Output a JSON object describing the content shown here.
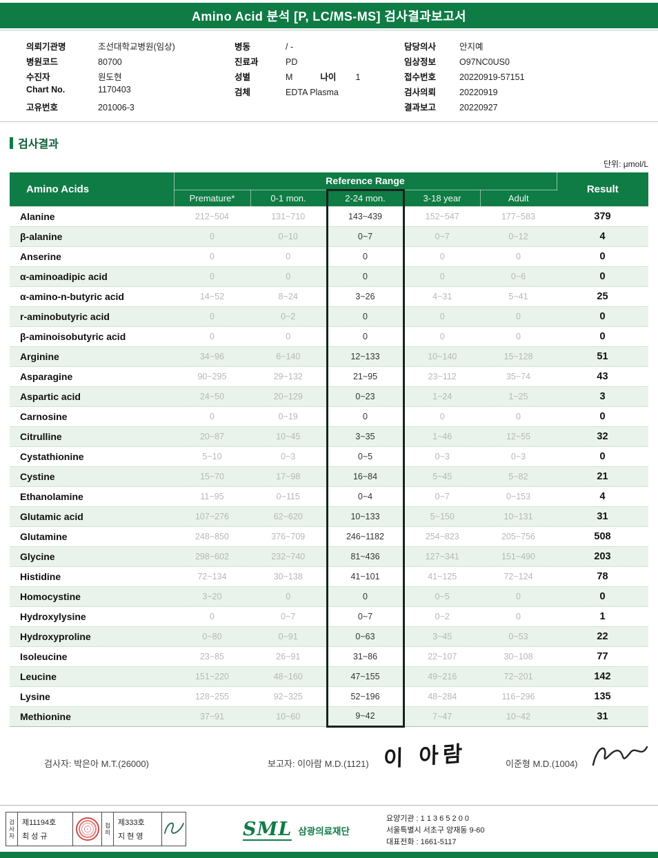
{
  "header": {
    "title": "Amino Acid 분석 [P, LC/MS-MS] 검사결과보고서"
  },
  "patient": {
    "col1": [
      {
        "label": "의뢰기관명",
        "value": "조선대학교병원(임상)"
      },
      {
        "label": "병원코드",
        "value": "80700"
      },
      {
        "label": "수진자",
        "value": "원도현"
      },
      {
        "label": "Chart No.",
        "value": "1170403"
      },
      {
        "label": "고유번호",
        "value": "201006-3"
      }
    ],
    "col2": [
      {
        "label": "병동",
        "value": "/ -"
      },
      {
        "label": "진료과",
        "value": "PD"
      },
      {
        "label": "성별",
        "value": "M",
        "label2": "나이",
        "value2": "1"
      },
      {
        "label": "검체",
        "value": "EDTA Plasma"
      }
    ],
    "col3": [
      {
        "label": "담당의사",
        "value": "안지예"
      },
      {
        "label": "임상정보",
        "value": "O97NC0US0"
      },
      {
        "label": "접수번호",
        "value": "20220919-57151"
      },
      {
        "label": "검사의뢰",
        "value": "20220919"
      },
      {
        "label": "결과보고",
        "value": "20220927"
      }
    ]
  },
  "section": {
    "title": "검사결과",
    "unit": "단위: μmol/L"
  },
  "table": {
    "header": {
      "amino": "Amino Acids",
      "ref_range": "Reference Range",
      "result": "Result",
      "sub": [
        "Premature*",
        "0-1 mon.",
        "2-24 mon.",
        "3-18 year",
        "Adult"
      ],
      "highlight_index": 2
    },
    "rows": [
      {
        "name": "Alanine",
        "refs": [
          "212~504",
          "131~710",
          "143~439",
          "152~547",
          "177~583"
        ],
        "result": "379"
      },
      {
        "name": "β-alanine",
        "refs": [
          "0",
          "0~10",
          "0~7",
          "0~7",
          "0~12"
        ],
        "result": "4"
      },
      {
        "name": "Anserine",
        "refs": [
          "0",
          "0",
          "0",
          "0",
          "0"
        ],
        "result": "0"
      },
      {
        "name": "α-aminoadipic acid",
        "refs": [
          "0",
          "0",
          "0",
          "0",
          "0~6"
        ],
        "result": "0"
      },
      {
        "name": "α-amino-n-butyric acid",
        "refs": [
          "14~52",
          "8~24",
          "3~26",
          "4~31",
          "5~41"
        ],
        "result": "25"
      },
      {
        "name": "r-aminobutyric acid",
        "refs": [
          "0",
          "0~2",
          "0",
          "0",
          "0"
        ],
        "result": "0"
      },
      {
        "name": "β-aminoisobutyric acid",
        "refs": [
          "0",
          "0",
          "0",
          "0",
          "0"
        ],
        "result": "0"
      },
      {
        "name": "Arginine",
        "refs": [
          "34~96",
          "6~140",
          "12~133",
          "10~140",
          "15~128"
        ],
        "result": "51"
      },
      {
        "name": "Asparagine",
        "refs": [
          "90~295",
          "29~132",
          "21~95",
          "23~112",
          "35~74"
        ],
        "result": "43"
      },
      {
        "name": "Aspartic acid",
        "refs": [
          "24~50",
          "20~129",
          "0~23",
          "1~24",
          "1~25"
        ],
        "result": "3"
      },
      {
        "name": "Carnosine",
        "refs": [
          "0",
          "0~19",
          "0",
          "0",
          "0"
        ],
        "result": "0"
      },
      {
        "name": "Citrulline",
        "refs": [
          "20~87",
          "10~45",
          "3~35",
          "1~46",
          "12~55"
        ],
        "result": "32"
      },
      {
        "name": "Cystathionine",
        "refs": [
          "5~10",
          "0~3",
          "0~5",
          "0~3",
          "0~3"
        ],
        "result": "0"
      },
      {
        "name": "Cystine",
        "refs": [
          "15~70",
          "17~98",
          "16~84",
          "5~45",
          "5~82"
        ],
        "result": "21"
      },
      {
        "name": "Ethanolamine",
        "refs": [
          "11~95",
          "0~115",
          "0~4",
          "0~7",
          "0~153"
        ],
        "result": "4"
      },
      {
        "name": "Glutamic acid",
        "refs": [
          "107~276",
          "62~620",
          "10~133",
          "5~150",
          "10~131"
        ],
        "result": "31"
      },
      {
        "name": "Glutamine",
        "refs": [
          "248~850",
          "376~709",
          "246~1182",
          "254~823",
          "205~756"
        ],
        "result": "508"
      },
      {
        "name": "Glycine",
        "refs": [
          "298~602",
          "232~740",
          "81~436",
          "127~341",
          "151~490"
        ],
        "result": "203"
      },
      {
        "name": "Histidine",
        "refs": [
          "72~134",
          "30~138",
          "41~101",
          "41~125",
          "72~124"
        ],
        "result": "78"
      },
      {
        "name": "Homocystine",
        "refs": [
          "3~20",
          "0",
          "0",
          "0~5",
          "0"
        ],
        "result": "0"
      },
      {
        "name": "Hydroxylysine",
        "refs": [
          "0",
          "0~7",
          "0~7",
          "0~2",
          "0"
        ],
        "result": "1"
      },
      {
        "name": "Hydroxyproline",
        "refs": [
          "0~80",
          "0~91",
          "0~63",
          "3~45",
          "0~53"
        ],
        "result": "22"
      },
      {
        "name": "Isoleucine",
        "refs": [
          "23~85",
          "26~91",
          "31~86",
          "22~107",
          "30~108"
        ],
        "result": "77"
      },
      {
        "name": "Leucine",
        "refs": [
          "151~220",
          "48~160",
          "47~155",
          "49~216",
          "72~201"
        ],
        "result": "142"
      },
      {
        "name": "Lysine",
        "refs": [
          "128~255",
          "92~325",
          "52~196",
          "48~284",
          "116~296"
        ],
        "result": "135"
      },
      {
        "name": "Methionine",
        "refs": [
          "37~91",
          "10~60",
          "9~42",
          "7~47",
          "10~42"
        ],
        "result": "31"
      }
    ]
  },
  "signatures": {
    "tester": "검사자: 박은아 M.T.(26000)",
    "reporter": "보고자: 이아람 M.D.(1121)",
    "reporter_sign": "이 아람",
    "director": "이준형 M.D.(1004)"
  },
  "footer": {
    "stamp_box": {
      "role1": "검사자",
      "cert1": "제11194호",
      "name1": "최 성 규",
      "role2": "접희",
      "cert2": "제333호",
      "name2": "지 현 영"
    },
    "org": {
      "logo": "SML",
      "name": "삼광의료재단"
    },
    "contact": {
      "line1": "요양기관 : 1 1 3 6 5 2 0 0",
      "line2": "서울특별시 서초구 양재동 9-60",
      "line3": "대표전화 : 1661-5117"
    }
  },
  "colors": {
    "green": "#0F7B45",
    "stripe": "#E9F3EB",
    "highlight_border": "#13241A"
  }
}
